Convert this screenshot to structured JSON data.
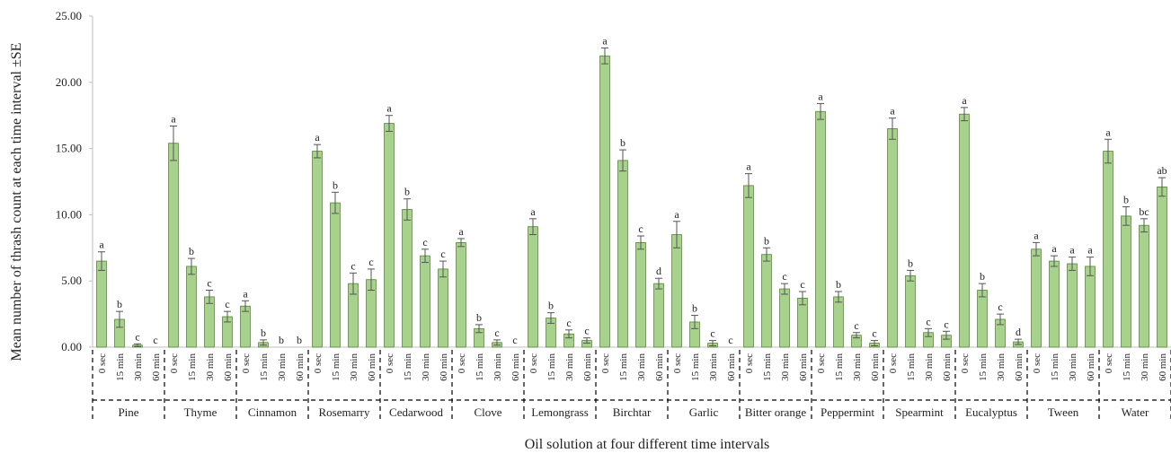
{
  "chart_data": {
    "type": "bar",
    "title": "",
    "ylabel": "Mean number of thrash count at each time interval ±SE",
    "xlabel": "Oil solution at four different time intervals",
    "ylim": [
      0,
      25
    ],
    "yticks": [
      "0.00",
      "5.00",
      "10.00",
      "15.00",
      "20.00",
      "25.00"
    ],
    "grid": false,
    "bar_color": "#a9d18e",
    "bar_edge_color": "#548235",
    "time_labels": [
      "0 sec",
      "15 min",
      "30 min",
      "60 min"
    ],
    "groups": [
      {
        "name": "Pine",
        "values": [
          6.5,
          2.1,
          0.15,
          0
        ],
        "errors": [
          0.7,
          0.6,
          0.1,
          0
        ],
        "letters": [
          "a",
          "b",
          "c",
          "c"
        ]
      },
      {
        "name": "Thyme",
        "values": [
          15.4,
          6.1,
          3.8,
          2.3
        ],
        "errors": [
          1.3,
          0.6,
          0.5,
          0.4
        ],
        "letters": [
          "a",
          "b",
          "c",
          "c"
        ]
      },
      {
        "name": "Cinnamon",
        "values": [
          3.1,
          0.35,
          0,
          0
        ],
        "errors": [
          0.4,
          0.2,
          0,
          0
        ],
        "letters": [
          "a",
          "b",
          "b",
          "b"
        ]
      },
      {
        "name": "Rosemarry",
        "values": [
          14.8,
          10.9,
          4.8,
          5.1
        ],
        "errors": [
          0.5,
          0.8,
          0.8,
          0.8
        ],
        "letters": [
          "a",
          "b",
          "c",
          "c"
        ]
      },
      {
        "name": "Cedarwood",
        "values": [
          16.9,
          10.4,
          6.9,
          5.9
        ],
        "errors": [
          0.6,
          0.8,
          0.5,
          0.6
        ],
        "letters": [
          "a",
          "b",
          "c",
          "c"
        ]
      },
      {
        "name": "Clove",
        "values": [
          7.9,
          1.4,
          0.35,
          0
        ],
        "errors": [
          0.3,
          0.3,
          0.2,
          0
        ],
        "letters": [
          "a",
          "b",
          "c",
          "c"
        ]
      },
      {
        "name": "Lemongrass",
        "values": [
          9.1,
          2.2,
          1.0,
          0.5
        ],
        "errors": [
          0.6,
          0.4,
          0.3,
          0.2
        ],
        "letters": [
          "a",
          "b",
          "c",
          "c"
        ]
      },
      {
        "name": "Birchtar",
        "values": [
          22.0,
          14.1,
          7.9,
          4.8
        ],
        "errors": [
          0.6,
          0.8,
          0.5,
          0.4
        ],
        "letters": [
          "a",
          "b",
          "c",
          "d"
        ]
      },
      {
        "name": "Garlic",
        "values": [
          8.5,
          1.9,
          0.3,
          0
        ],
        "errors": [
          1.0,
          0.5,
          0.2,
          0
        ],
        "letters": [
          "a",
          "b",
          "c",
          "c"
        ]
      },
      {
        "name": "Bitter orange",
        "values": [
          12.2,
          7.0,
          4.4,
          3.7
        ],
        "errors": [
          0.9,
          0.5,
          0.4,
          0.5
        ],
        "letters": [
          "a",
          "b",
          "c",
          "c"
        ]
      },
      {
        "name": "Peppermint",
        "values": [
          17.8,
          3.8,
          0.9,
          0.3
        ],
        "errors": [
          0.6,
          0.4,
          0.2,
          0.2
        ],
        "letters": [
          "a",
          "b",
          "c",
          "c"
        ]
      },
      {
        "name": "Spearmint",
        "values": [
          16.5,
          5.4,
          1.1,
          0.9
        ],
        "errors": [
          0.8,
          0.4,
          0.3,
          0.3
        ],
        "letters": [
          "a",
          "b",
          "c",
          "c"
        ]
      },
      {
        "name": "Eucalyptus",
        "values": [
          17.6,
          4.3,
          2.1,
          0.4
        ],
        "errors": [
          0.5,
          0.5,
          0.4,
          0.2
        ],
        "letters": [
          "a",
          "b",
          "c",
          "d"
        ]
      },
      {
        "name": "Tween",
        "values": [
          7.4,
          6.5,
          6.3,
          6.1
        ],
        "errors": [
          0.5,
          0.4,
          0.5,
          0.7
        ],
        "letters": [
          "a",
          "a",
          "a",
          "a"
        ]
      },
      {
        "name": "Water",
        "values": [
          14.8,
          9.9,
          9.2,
          12.1
        ],
        "errors": [
          0.9,
          0.7,
          0.5,
          0.7
        ],
        "letters": [
          "a",
          "b",
          "bc",
          "ab"
        ]
      }
    ]
  }
}
